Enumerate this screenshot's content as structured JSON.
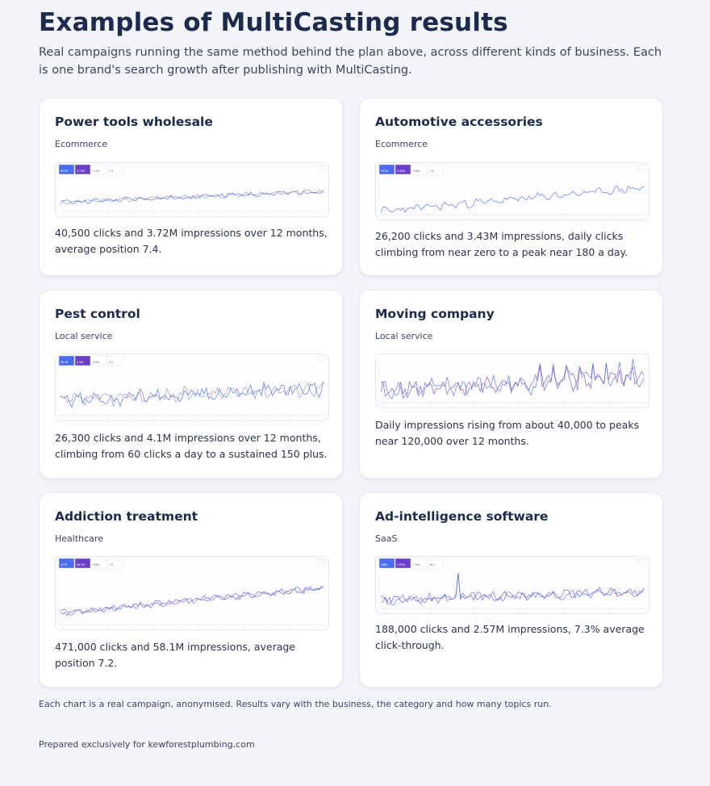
{
  "title": "Examples of MultiCasting results",
  "intro": "Real campaigns running the same method behind the plan above, across different kinds of business. Each is one brand's search growth after publishing with MultiCasting.",
  "cards": [
    {
      "title": "Power tools wholesale",
      "category": "Ecommerce",
      "metric_clicks": "40.5K",
      "metric_impr": "3.72M",
      "metric_ctr": "1.1%",
      "metric_pos": "7.4",
      "description": "40,500 clicks and 3.72M impressions over 12 months, average position 7.4."
    },
    {
      "title": "Automotive accessories",
      "category": "Ecommerce",
      "metric_clicks": "26.2K",
      "metric_impr": "3.43M",
      "metric_ctr": "0.8%",
      "metric_pos": "7.8",
      "description": "26,200 clicks and 3.43M impressions, daily clicks climbing from near zero to a peak near 180 a day."
    },
    {
      "title": "Pest control",
      "category": "Local service",
      "metric_clicks": "26.3K",
      "metric_impr": "4.1M",
      "metric_ctr": "0.6%",
      "metric_pos": "9.4",
      "description": "26,300 clicks and 4.1M impressions over 12 months, climbing from 60 clicks a day to a sustained 150 plus."
    },
    {
      "title": "Moving company",
      "category": "Local service",
      "description": "Daily impressions rising from about 40,000 to peaks near 120,000 over 12 months."
    },
    {
      "title": "Addiction treatment",
      "category": "Healthcare",
      "metric_clicks": "471K",
      "metric_impr": "58.1M",
      "metric_ctr": "0.8%",
      "metric_pos": "7.2",
      "description": "471,000 clicks and 58.1M impressions, average position 7.2."
    },
    {
      "title": "Ad-intelligence software",
      "category": "SaaS",
      "metric_clicks": "188K",
      "metric_impr": "2.57M",
      "metric_ctr": "7.3%",
      "metric_pos": "18.1",
      "description": "188,000 clicks and 2.57M impressions, 7.3% average click-through."
    }
  ],
  "footnote": "Each chart is a real campaign, anonymised. Results vary with the business, the category and how many topics run.",
  "prepared_for": "Prepared exclusively for kewforestplumbing.com",
  "colors": {
    "clicks": "#4a6cf0",
    "impressions": "#6b3fc9",
    "page_bg": "#f3f5fa"
  }
}
